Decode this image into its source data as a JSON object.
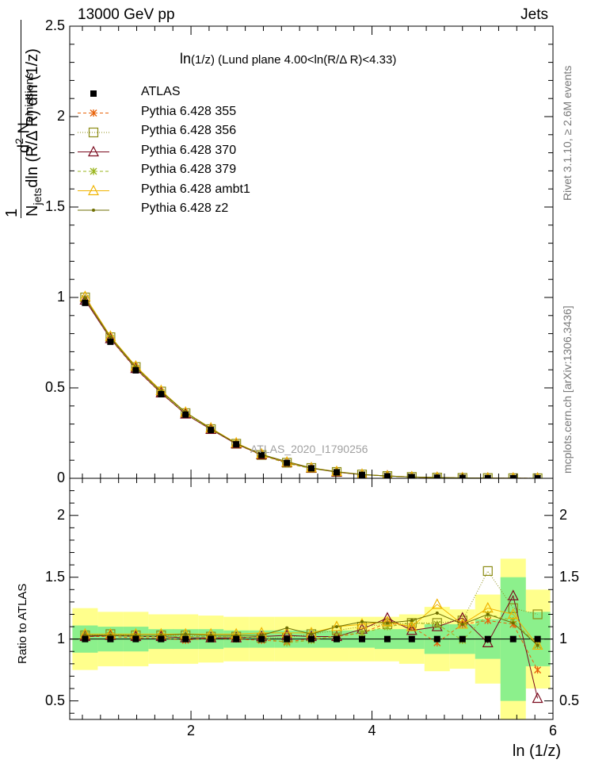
{
  "header": {
    "left": "13000 GeV pp",
    "right": "Jets",
    "plot_title_main": "ln",
    "plot_title_rest": "(1/z) (Lund plane 4.00<ln(R/Δ R)<4.33)"
  },
  "side": {
    "rivet": "Rivet 3.1.10, ≥ 2.6M events",
    "mcplots": "mcplots.cern.ch [arXiv:1306.3436]"
  },
  "watermark": "ATLAS_2020_I1790256",
  "ylabel_parts": {
    "one": "1",
    "num_d": "d",
    "num_2": "2",
    "num_N": " N",
    "num_sub": "emissions",
    "den_N": "N",
    "den_sub": "jets",
    "den_rest": "dln (R/Δ R) dln (1/z)"
  },
  "ratio_ylabel": "Ratio to ATLAS",
  "xlabel": "ln (1/z)",
  "legend": [
    {
      "label": "ATLAS",
      "color": "#000000",
      "marker": "square-filled",
      "dash": ""
    },
    {
      "label": "Pythia 6.428 355",
      "color": "#e8630a",
      "marker": "star",
      "dash": "4,3"
    },
    {
      "label": "Pythia 6.428 356",
      "color": "#8c8c14",
      "marker": "square-open",
      "dash": "1,2"
    },
    {
      "label": "Pythia 6.428 370",
      "color": "#7a0a1e",
      "marker": "triangle-open",
      "dash": ""
    },
    {
      "label": "Pythia 6.428 379",
      "color": "#9ab51e",
      "marker": "star",
      "dash": "4,3"
    },
    {
      "label": "Pythia 6.428 ambt1",
      "color": "#f0b400",
      "marker": "triangle-open",
      "dash": ""
    },
    {
      "label": "Pythia 6.428 z2",
      "color": "#6e6e00",
      "marker": "dot",
      "dash": ""
    }
  ],
  "colors": {
    "band_inner": "#8cf08c",
    "band_outer": "#ffff8c"
  },
  "chart_data": {
    "type": "line",
    "x": [
      0.83,
      1.11,
      1.39,
      1.67,
      1.94,
      2.22,
      2.5,
      2.78,
      3.06,
      3.33,
      3.61,
      3.89,
      4.17,
      4.44,
      4.72,
      5.0,
      5.28,
      5.56,
      5.83
    ],
    "xlim": [
      0.66,
      6.0
    ],
    "main": {
      "ylim": [
        0,
        2.5
      ],
      "yticks": [
        0,
        0.5,
        1,
        1.5,
        2,
        2.5
      ],
      "ytick_labels": [
        "0",
        "0.5",
        "1",
        "1.5",
        "2",
        "2.5"
      ],
      "data": {
        "name": "ATLAS",
        "values": [
          0.97,
          0.755,
          0.597,
          0.465,
          0.352,
          0.267,
          0.188,
          0.128,
          0.085,
          0.055,
          0.033,
          0.019,
          0.011,
          0.0065,
          0.0035,
          0.0018,
          0.0009,
          0.0004,
          0.0002
        ]
      },
      "series": [
        {
          "name": "Pythia 6.428 355",
          "values": [
            0.99,
            0.77,
            0.605,
            0.47,
            0.355,
            0.27,
            0.189,
            0.127,
            0.083,
            0.055,
            0.034,
            0.02,
            0.0125,
            0.0072,
            0.0036,
            0.002,
            0.001,
            0.00045,
            0.00015
          ]
        },
        {
          "name": "Pythia 6.428 356",
          "values": [
            1.0,
            0.78,
            0.615,
            0.48,
            0.36,
            0.272,
            0.191,
            0.129,
            0.086,
            0.057,
            0.035,
            0.021,
            0.0125,
            0.0075,
            0.004,
            0.0021,
            0.0014,
            0.0005,
            0.00024
          ]
        },
        {
          "name": "Pythia 6.428 370",
          "values": [
            0.985,
            0.772,
            0.607,
            0.472,
            0.355,
            0.27,
            0.19,
            0.13,
            0.087,
            0.056,
            0.034,
            0.0205,
            0.013,
            0.007,
            0.004,
            0.0019,
            0.001,
            0.00055,
            0.0001
          ]
        },
        {
          "name": "Pythia 6.428 379",
          "values": [
            0.995,
            0.775,
            0.61,
            0.475,
            0.358,
            0.272,
            0.192,
            0.13,
            0.082,
            0.054,
            0.035,
            0.02,
            0.0122,
            0.0073,
            0.0039,
            0.0019,
            0.0011,
            0.00045,
            0.00019
          ]
        },
        {
          "name": "Pythia 6.428 ambt1",
          "values": [
            1.005,
            0.785,
            0.62,
            0.485,
            0.365,
            0.278,
            0.195,
            0.134,
            0.089,
            0.058,
            0.037,
            0.0215,
            0.0125,
            0.0072,
            0.0045,
            0.002,
            0.0011,
            0.00048,
            0.00019
          ]
        },
        {
          "name": "Pythia 6.428 z2",
          "values": [
            0.995,
            0.78,
            0.615,
            0.48,
            0.365,
            0.275,
            0.193,
            0.131,
            0.093,
            0.057,
            0.036,
            0.0215,
            0.0125,
            0.0075,
            0.0042,
            0.002,
            0.0011,
            0.00045,
            0.00019
          ]
        }
      ]
    },
    "ratio": {
      "ylim": [
        0.35,
        2.3
      ],
      "yticks": [
        0.5,
        1,
        1.5,
        2
      ],
      "ytick_labels": [
        "0.5",
        "1",
        "1.5",
        "2"
      ],
      "band_inner": [
        [
          0.89,
          1.11
        ],
        [
          0.9,
          1.1
        ],
        [
          0.9,
          1.1
        ],
        [
          0.92,
          1.08
        ],
        [
          0.92,
          1.08
        ],
        [
          0.92,
          1.08
        ],
        [
          0.93,
          1.07
        ],
        [
          0.93,
          1.07
        ],
        [
          0.93,
          1.07
        ],
        [
          0.93,
          1.07
        ],
        [
          0.93,
          1.07
        ],
        [
          0.93,
          1.07
        ],
        [
          0.92,
          1.08
        ],
        [
          0.92,
          1.08
        ],
        [
          0.88,
          1.12
        ],
        [
          0.88,
          1.12
        ],
        [
          0.84,
          1.16
        ],
        [
          0.5,
          1.5
        ],
        [
          0.78,
          1.22
        ]
      ],
      "band_outer": [
        [
          0.75,
          1.25
        ],
        [
          0.78,
          1.22
        ],
        [
          0.78,
          1.22
        ],
        [
          0.8,
          1.2
        ],
        [
          0.8,
          1.2
        ],
        [
          0.81,
          1.19
        ],
        [
          0.82,
          1.18
        ],
        [
          0.82,
          1.18
        ],
        [
          0.82,
          1.18
        ],
        [
          0.82,
          1.18
        ],
        [
          0.82,
          1.18
        ],
        [
          0.82,
          1.18
        ],
        [
          0.82,
          1.18
        ],
        [
          0.8,
          1.2
        ],
        [
          0.74,
          1.26
        ],
        [
          0.76,
          1.24
        ],
        [
          0.64,
          1.36
        ],
        [
          0.35,
          1.65
        ],
        [
          0.6,
          1.4
        ]
      ],
      "series": [
        {
          "name": "Pythia 6.428 355",
          "values": [
            1.02,
            1.02,
            1.01,
            1.01,
            0.99,
            1.01,
            1.0,
            0.99,
            0.98,
            1.0,
            1.02,
            1.05,
            1.13,
            1.1,
            0.97,
            1.12,
            1.15,
            1.12,
            0.75
          ]
        },
        {
          "name": "Pythia 6.428 356",
          "values": [
            1.03,
            1.04,
            1.03,
            1.03,
            1.03,
            1.02,
            1.02,
            1.01,
            1.01,
            1.04,
            1.07,
            1.1,
            1.12,
            1.13,
            1.13,
            1.15,
            1.55,
            1.25,
            1.2
          ]
        },
        {
          "name": "Pythia 6.428 370",
          "values": [
            1.02,
            1.03,
            1.02,
            1.02,
            1.01,
            1.01,
            1.01,
            1.02,
            1.03,
            1.02,
            1.02,
            1.08,
            1.17,
            1.07,
            1.1,
            1.17,
            0.97,
            1.35,
            0.52
          ]
        },
        {
          "name": "Pythia 6.428 379",
          "values": [
            1.03,
            1.03,
            1.02,
            1.02,
            1.02,
            1.02,
            1.02,
            1.01,
            0.97,
            0.99,
            1.03,
            1.05,
            1.1,
            1.13,
            1.12,
            0.99,
            1.2,
            1.15,
            0.95
          ]
        },
        {
          "name": "Pythia 6.428 ambt1",
          "values": [
            1.04,
            1.04,
            1.04,
            1.04,
            1.04,
            1.04,
            1.04,
            1.05,
            1.05,
            1.05,
            1.1,
            1.12,
            1.14,
            1.1,
            1.28,
            1.12,
            1.25,
            1.2,
            0.95
          ]
        },
        {
          "name": "Pythia 6.428 z2",
          "values": [
            1.03,
            1.03,
            1.03,
            1.03,
            1.04,
            1.03,
            1.03,
            1.03,
            1.09,
            1.04,
            1.1,
            1.14,
            1.13,
            1.15,
            1.21,
            1.12,
            1.2,
            1.13,
            0.95
          ]
        }
      ]
    },
    "xticks": [
      2,
      4,
      6
    ],
    "xtick_labels": [
      "2",
      "4",
      "6"
    ]
  }
}
